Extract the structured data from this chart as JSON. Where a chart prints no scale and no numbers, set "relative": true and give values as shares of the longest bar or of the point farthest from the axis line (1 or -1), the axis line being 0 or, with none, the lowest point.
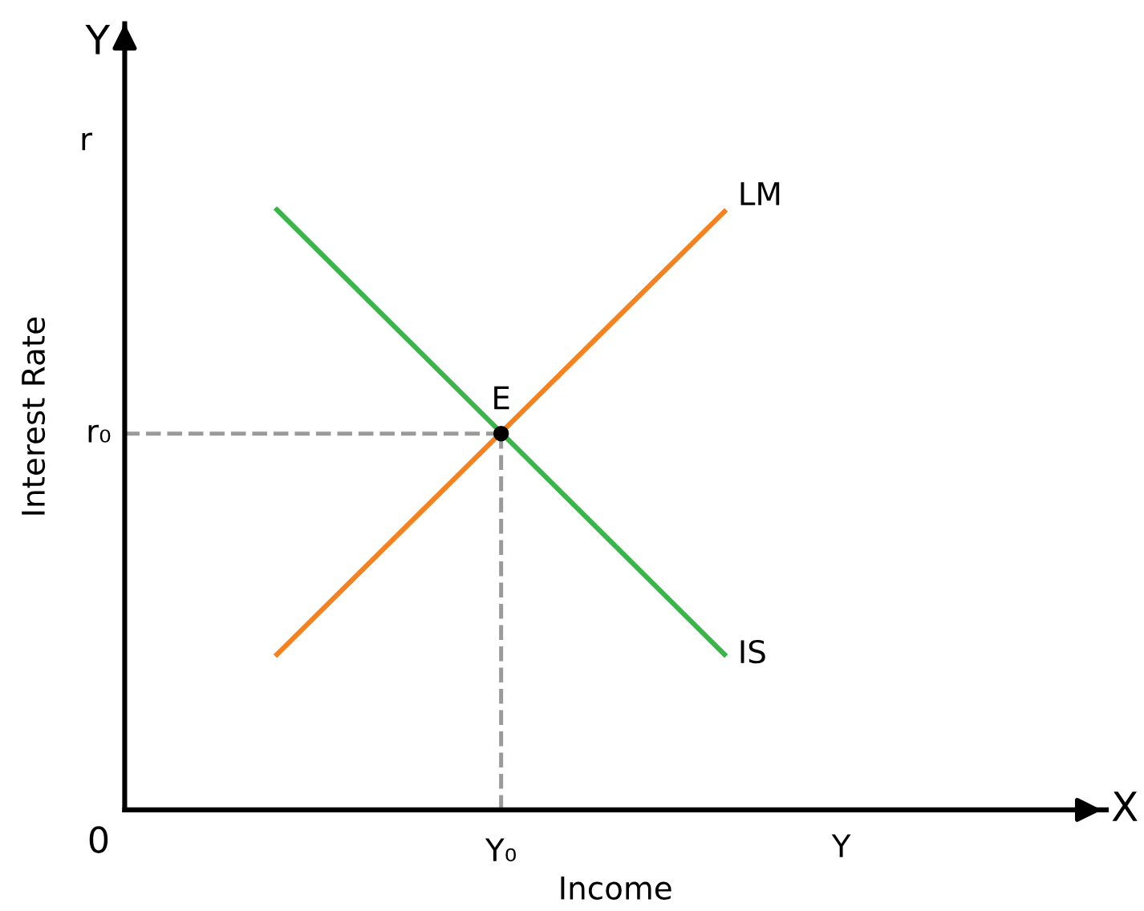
{
  "chart_data": {
    "type": "line",
    "relative": true,
    "xlabel": "Income",
    "ylabel": "Interest Rate",
    "categories": [
      null,
      null
    ],
    "series": [
      {
        "name": "IS",
        "color": "#3ab54a",
        "values": [
          1,
          0.259
        ]
      },
      {
        "name": "LM",
        "color": "#f5821f",
        "values": [
          0.259,
          0.997
        ]
      }
    ],
    "ref_lines": [
      {
        "axis": "y",
        "value": 0.627,
        "label": "r₀",
        "color": "#9a9a9a",
        "line_style": "dashed"
      }
    ],
    "annotations": [
      {
        "text": "E",
        "y": 0.627
      },
      "Y₀",
      "r",
      "Y",
      "0",
      "Y",
      "X"
    ],
    "line_style": "solid",
    "marker": "none"
  }
}
